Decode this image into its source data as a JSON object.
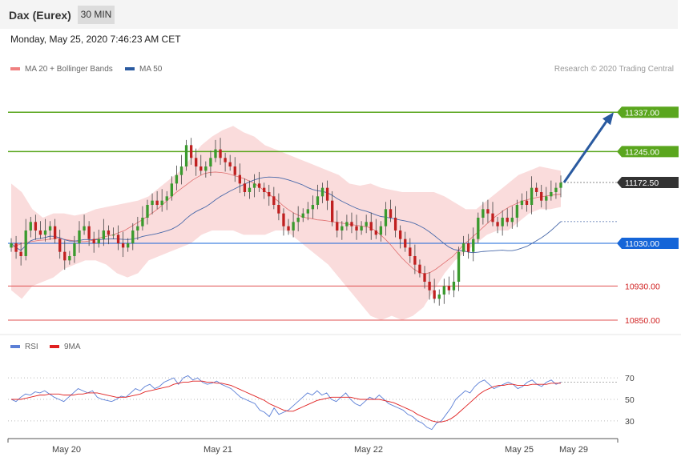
{
  "header": {
    "title": "Dax (Eurex)",
    "timeframe": "30 MIN",
    "date": "Monday, May 25, 2020 7:46:23 AM CET"
  },
  "credit": "Research © 2020 Trading Central",
  "colors": {
    "up": "#3a9a2e",
    "down": "#c02020",
    "bollinger": "#f8d0d0",
    "ma20": "#e07070",
    "ma50": "#4a6aaa",
    "green_level": "#5aa61e",
    "blue_level": "#1565d8",
    "red_level": "#e05050",
    "rsi": "#5b7fd6",
    "rsi_ma": "#e02020",
    "arrow": "#2a5aa0"
  },
  "chart_data": [
    {
      "type": "candlestick",
      "legend": [
        "MA 20 + Bollinger Bands",
        "MA 50"
      ],
      "ylim": [
        10820,
        11420
      ],
      "x_ticks": [
        "May 20",
        "May 21",
        "May 22",
        "May 25",
        "May 29"
      ],
      "levels": [
        {
          "value": 11337.0,
          "label": "11337.00",
          "style": "resistance"
        },
        {
          "value": 11245.0,
          "label": "11245.00",
          "style": "resistance"
        },
        {
          "value": 11172.5,
          "label": "11172.50",
          "style": "last"
        },
        {
          "value": 11030.0,
          "label": "11030.00",
          "style": "pivot"
        },
        {
          "value": 10930.0,
          "label": "10930.00",
          "style": "support"
        },
        {
          "value": 10850.0,
          "label": "10850.00",
          "style": "support"
        }
      ],
      "target_arrow": {
        "from": 11172.5,
        "to": 11337.0
      },
      "close": [
        11030,
        11010,
        11000,
        11060,
        11080,
        11060,
        11050,
        11060,
        11070,
        11040,
        11010,
        10990,
        11000,
        11030,
        11060,
        11070,
        11040,
        11030,
        11040,
        11060,
        11050,
        11050,
        11030,
        11020,
        11030,
        11060,
        11070,
        11090,
        11120,
        11130,
        11120,
        11130,
        11140,
        11170,
        11190,
        11210,
        11260,
        11230,
        11210,
        11200,
        11210,
        11230,
        11250,
        11230,
        11220,
        11210,
        11190,
        11170,
        11150,
        11160,
        11170,
        11160,
        11150,
        11140,
        11120,
        11100,
        11070,
        11060,
        11080,
        11090,
        11100,
        11110,
        11120,
        11140,
        11160,
        11130,
        11080,
        11060,
        11070,
        11080,
        11070,
        11060,
        11070,
        11080,
        11060,
        11050,
        11070,
        11110,
        11090,
        11060,
        11040,
        11020,
        11000,
        10980,
        10960,
        10940,
        10920,
        10900,
        10910,
        10930,
        10920,
        10940,
        11010,
        11030,
        11010,
        11040,
        11090,
        11110,
        11100,
        11080,
        11070,
        11090,
        11080,
        11090,
        11120,
        11130,
        11120,
        11160,
        11150,
        11130,
        11140,
        11150,
        11160,
        11172
      ],
      "ma20": [
        11020,
        11025,
        11030,
        11033,
        11035,
        11037,
        11038,
        11040,
        11042,
        11040,
        11038,
        11036,
        11034,
        11034,
        11036,
        11040,
        11044,
        11047,
        11050,
        11055,
        11060,
        11068,
        11076,
        11084,
        11093,
        11102,
        11112,
        11124,
        11136,
        11148,
        11158,
        11168,
        11178,
        11186,
        11193,
        11196,
        11197,
        11196,
        11194,
        11190,
        11186,
        11182,
        11176,
        11170,
        11160,
        11150,
        11140,
        11130,
        11118,
        11108,
        11100,
        11094,
        11090,
        11088,
        11085,
        11084,
        11082,
        11080,
        11078,
        11076,
        11074,
        11072,
        11070,
        11068,
        11062,
        11052,
        11040,
        11026,
        11010,
        10995,
        10982,
        10970,
        10962,
        10958,
        10962,
        10970,
        10980,
        10990,
        11000,
        11015,
        11028,
        11040,
        11052,
        11064,
        11076,
        11088,
        11098,
        11108,
        11116,
        11122,
        11128,
        11132,
        11135,
        11138,
        11140,
        11142,
        11144,
        11145
      ],
      "bb_upper": [
        11170,
        11150,
        11110,
        11090,
        11100,
        11100,
        11095,
        11100,
        11110,
        11115,
        11120,
        11125,
        11130,
        11140,
        11160,
        11180,
        11200,
        11230,
        11260,
        11280,
        11295,
        11305,
        11290,
        11280,
        11260,
        11250,
        11240,
        11230,
        11220,
        11210,
        11200,
        11190,
        11170,
        11165,
        11170,
        11160,
        11155,
        11150,
        11150,
        11150,
        11150,
        11140,
        11125,
        11110,
        11110,
        11130,
        11150,
        11170,
        11190,
        11200,
        11210,
        11205,
        11200
      ],
      "bb_lower": [
        10920,
        10900,
        10930,
        10940,
        10950,
        10970,
        10980,
        10990,
        10990,
        10980,
        10960,
        10950,
        10960,
        10990,
        11000,
        11010,
        11020,
        11030,
        11050,
        11060,
        11060,
        11060,
        11050,
        11050,
        11050,
        11060,
        11060,
        11040,
        11020,
        11000,
        10980,
        10950,
        10920,
        10890,
        10860,
        10850,
        10860,
        10850,
        10860,
        10880,
        10920,
        10960,
        10990,
        11010,
        11030,
        11050,
        11060,
        11060,
        11080,
        11100,
        11110,
        11110,
        11115
      ]
    },
    {
      "type": "line",
      "legend": [
        "RSI",
        "9MA"
      ],
      "ylim": [
        15,
        85
      ],
      "y_ticks": [
        70,
        50,
        30
      ],
      "rsi": [
        50,
        48,
        52,
        55,
        54,
        57,
        56,
        58,
        55,
        52,
        50,
        48,
        52,
        56,
        60,
        58,
        56,
        58,
        52,
        50,
        49,
        48,
        50,
        53,
        52,
        56,
        60,
        58,
        62,
        64,
        60,
        62,
        66,
        68,
        70,
        64,
        70,
        72,
        68,
        70,
        66,
        64,
        65,
        67,
        64,
        62,
        60,
        56,
        52,
        50,
        48,
        46,
        40,
        38,
        34,
        42,
        36,
        38,
        40,
        44,
        48,
        52,
        56,
        54,
        58,
        54,
        56,
        50,
        48,
        52,
        56,
        50,
        46,
        44,
        48,
        52,
        50,
        54,
        50,
        46,
        44,
        42,
        40,
        36,
        34,
        30,
        28,
        24,
        22,
        28,
        30,
        36,
        42,
        50,
        54,
        58,
        56,
        62,
        66,
        68,
        64,
        60,
        62,
        64,
        66,
        64,
        60,
        62,
        66,
        68,
        64,
        62,
        66,
        68,
        64,
        66
      ],
      "rsi_ma": [
        50,
        50,
        50,
        51,
        52,
        53,
        54,
        54,
        55,
        55,
        55,
        54,
        54,
        54,
        55,
        55,
        56,
        56,
        56,
        55,
        54,
        53,
        52,
        52,
        52,
        53,
        54,
        55,
        57,
        58,
        59,
        60,
        61,
        62,
        64,
        65,
        66,
        66,
        67,
        67,
        67,
        66,
        66,
        65,
        65,
        64,
        63,
        61,
        59,
        57,
        55,
        53,
        51,
        49,
        46,
        44,
        42,
        40,
        39,
        39,
        41,
        43,
        45,
        47,
        49,
        50,
        51,
        52,
        52,
        52,
        52,
        52,
        51,
        50,
        50,
        50,
        50,
        50,
        49,
        48,
        47,
        45,
        43,
        41,
        39,
        36,
        34,
        32,
        30,
        29,
        29,
        30,
        32,
        35,
        39,
        43,
        47,
        51,
        55,
        58,
        60,
        62,
        63,
        63,
        64,
        64,
        63,
        63,
        63,
        64,
        64,
        64,
        64,
        65,
        65,
        65
      ]
    }
  ]
}
